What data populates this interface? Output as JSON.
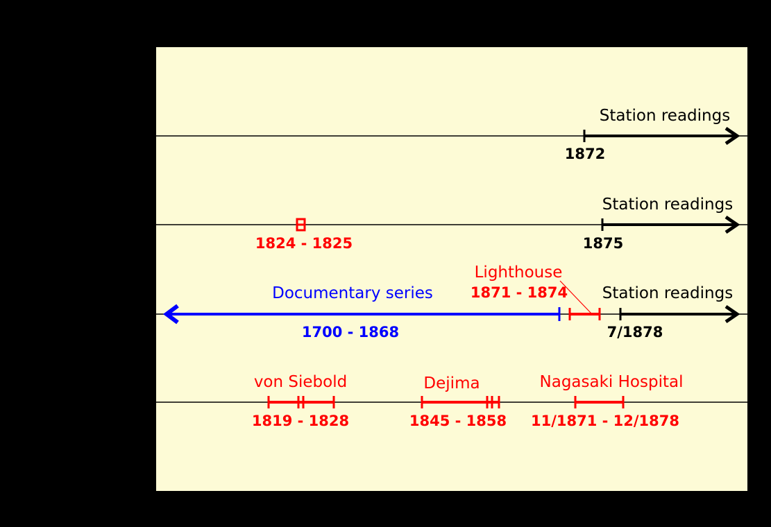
{
  "colors": {
    "background": "#000000",
    "panel": "#fdfbd6",
    "black": "#000000",
    "red": "#ff0000",
    "blue": "#0000ff"
  },
  "row1": {
    "station_label": "Station readings",
    "start_label": "1872"
  },
  "row2": {
    "station_label": "Station readings",
    "start_label": "1875",
    "red_span_label": "1824 - 1825"
  },
  "row3": {
    "documentary_label": "Documentary series",
    "documentary_years": "1700 - 1868",
    "lighthouse_label": "Lighthouse",
    "lighthouse_years": "1871 - 1874",
    "station_label": "Station readings",
    "start_label": "7/1878"
  },
  "row4": {
    "siebold_label": "von Siebold",
    "siebold_years": "1819 - 1828",
    "dejima_label": "Dejima",
    "dejima_years": "1845 - 1858",
    "hospital_label": "Nagasaki Hospital",
    "hospital_years": "11/1871 - 12/1878"
  }
}
